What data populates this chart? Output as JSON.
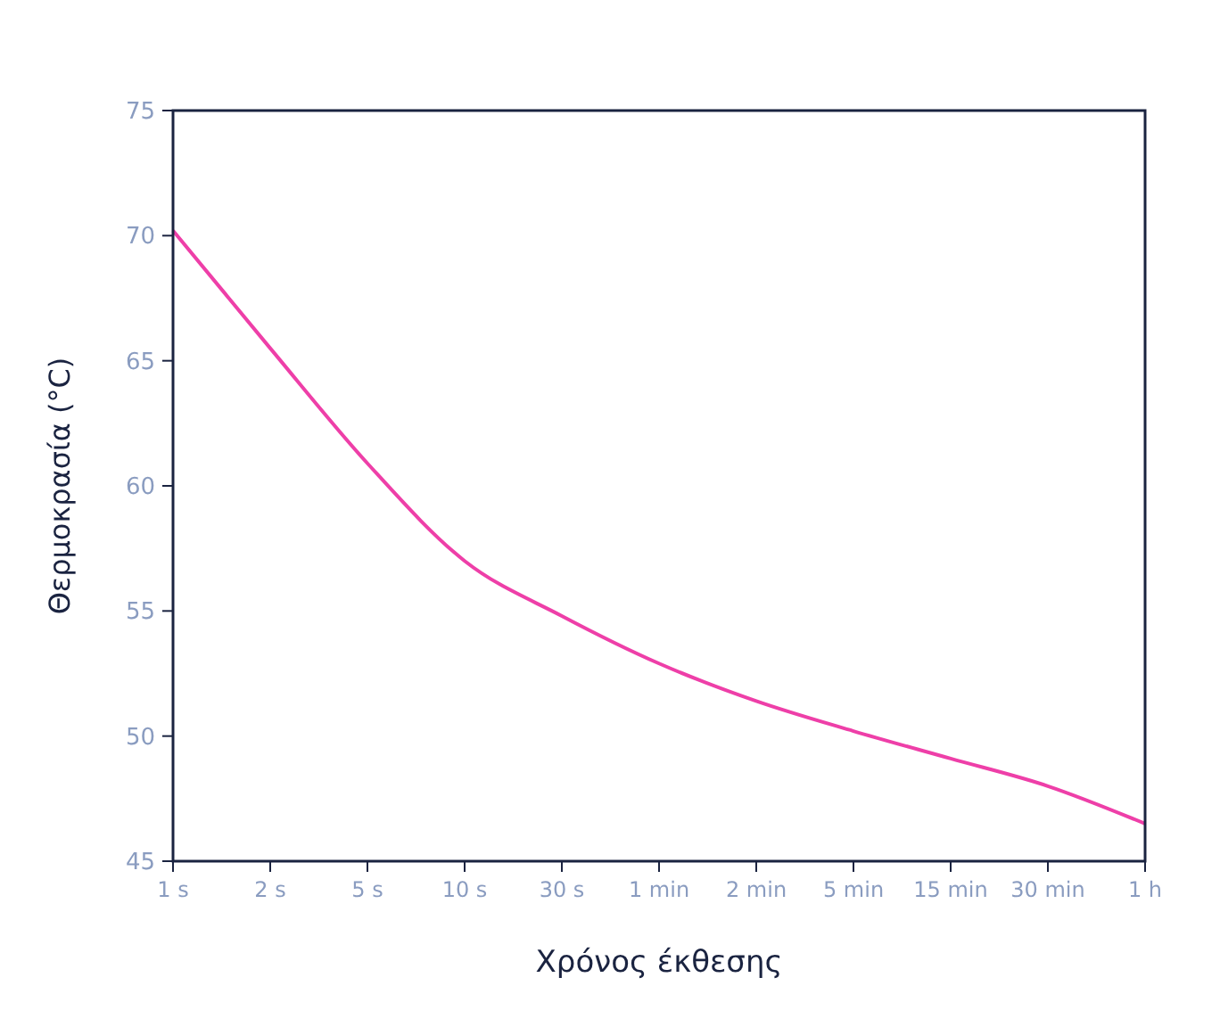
{
  "chart_data": {
    "type": "line",
    "xlabel": "Χρόνος έκθεσης",
    "ylabel": "Θερμοκρασία (°C)",
    "categories": [
      "1 s",
      "2 s",
      "5 s",
      "10 s",
      "30 s",
      "1 min",
      "2 min",
      "5 min",
      "15 min",
      "30 min",
      "1 h"
    ],
    "series": [
      {
        "color": "#ee3fa8",
        "values": [
          70.2,
          65.5,
          60.9,
          57.0,
          54.8,
          52.9,
          51.4,
          50.2,
          49.1,
          48.0,
          46.5
        ]
      }
    ],
    "ylim": [
      45,
      75
    ],
    "yticks": [
      45,
      50,
      55,
      60,
      65,
      70,
      75
    ],
    "grid": false,
    "marker": "none",
    "line_style": "solid"
  }
}
